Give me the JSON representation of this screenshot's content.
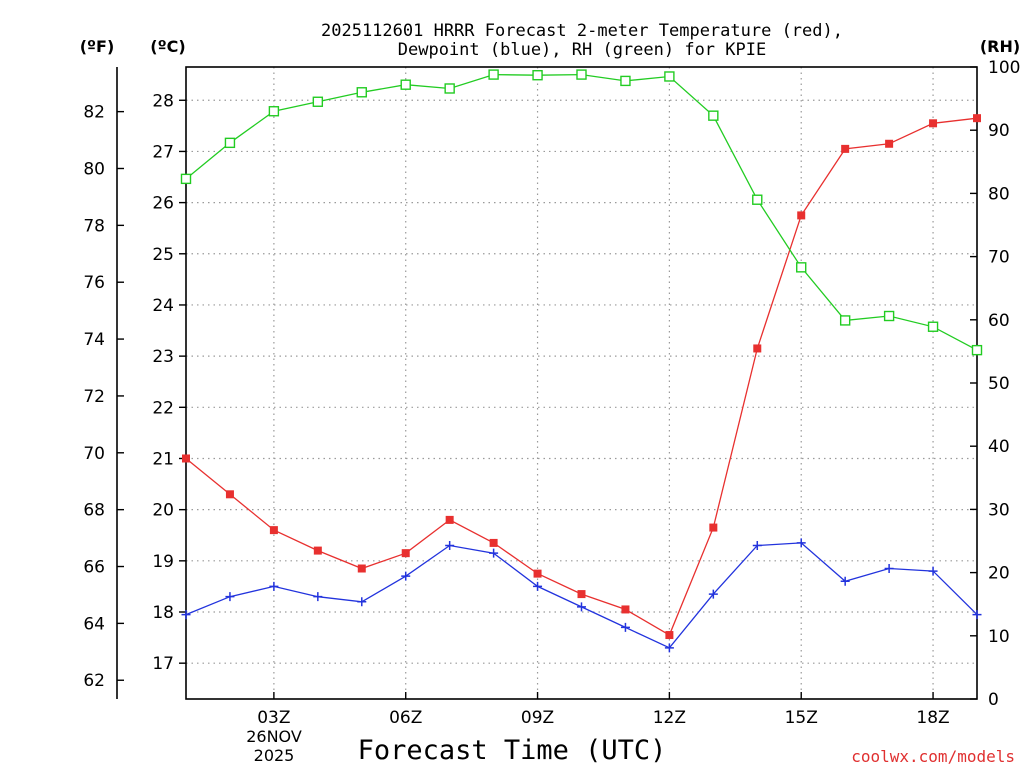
{
  "chart_data": {
    "type": "line",
    "title_line1": "2025112601 HRRR Forecast 2-meter Temperature (red),",
    "title_line2": "Dewpoint (blue), RH (green) for KPIE",
    "xlabel": "Forecast Time (UTC)",
    "watermark": "coolwx.com/models",
    "unit_f": "(ºF)",
    "unit_c": "(ºC)",
    "unit_rh": "(RH)",
    "date_line1": "26NOV",
    "date_line2": "2025",
    "x_range": [
      1,
      19
    ],
    "x_ticks": [
      {
        "x": 3,
        "label": "03Z"
      },
      {
        "x": 6,
        "label": "06Z"
      },
      {
        "x": 9,
        "label": "09Z"
      },
      {
        "x": 12,
        "label": "12Z"
      },
      {
        "x": 15,
        "label": "15Z"
      },
      {
        "x": 18,
        "label": "18Z"
      }
    ],
    "c_range": [
      16.3,
      28.65
    ],
    "c_ticks": [
      17,
      18,
      19,
      20,
      21,
      22,
      23,
      24,
      25,
      26,
      27,
      28
    ],
    "f_ticks": [
      62,
      64,
      66,
      68,
      70,
      72,
      74,
      76,
      78,
      80,
      82
    ],
    "rh_range": [
      0,
      100
    ],
    "rh_ticks": [
      0,
      10,
      20,
      30,
      40,
      50,
      60,
      70,
      80,
      90,
      100
    ],
    "x": [
      1,
      2,
      3,
      4,
      5,
      6,
      7,
      8,
      9,
      10,
      11,
      12,
      13,
      14,
      15,
      16,
      17,
      18,
      19
    ],
    "series": [
      {
        "name": "Temperature",
        "unit": "C",
        "color": "#e8302f",
        "marker": "filled-square",
        "values": [
          21.0,
          20.3,
          19.6,
          19.2,
          18.85,
          19.15,
          19.8,
          19.35,
          18.75,
          18.35,
          18.05,
          17.55,
          19.65,
          23.15,
          25.75,
          27.05,
          27.15,
          27.55,
          27.65
        ]
      },
      {
        "name": "Dewpoint",
        "unit": "C",
        "color": "#2233dd",
        "marker": "plus",
        "values": [
          17.95,
          18.3,
          18.5,
          18.3,
          18.2,
          18.7,
          19.3,
          19.15,
          18.5,
          18.1,
          17.7,
          17.3,
          18.35,
          19.3,
          19.35,
          18.6,
          18.85,
          18.8,
          17.95
        ]
      },
      {
        "name": "RH",
        "unit": "%",
        "color": "#22cc22",
        "marker": "open-square",
        "values": [
          82.3,
          88.0,
          93.0,
          94.5,
          96.0,
          97.2,
          96.6,
          98.8,
          98.7,
          98.8,
          97.8,
          98.5,
          92.3,
          79.0,
          68.3,
          59.9,
          60.6,
          58.9,
          55.2
        ]
      }
    ]
  }
}
